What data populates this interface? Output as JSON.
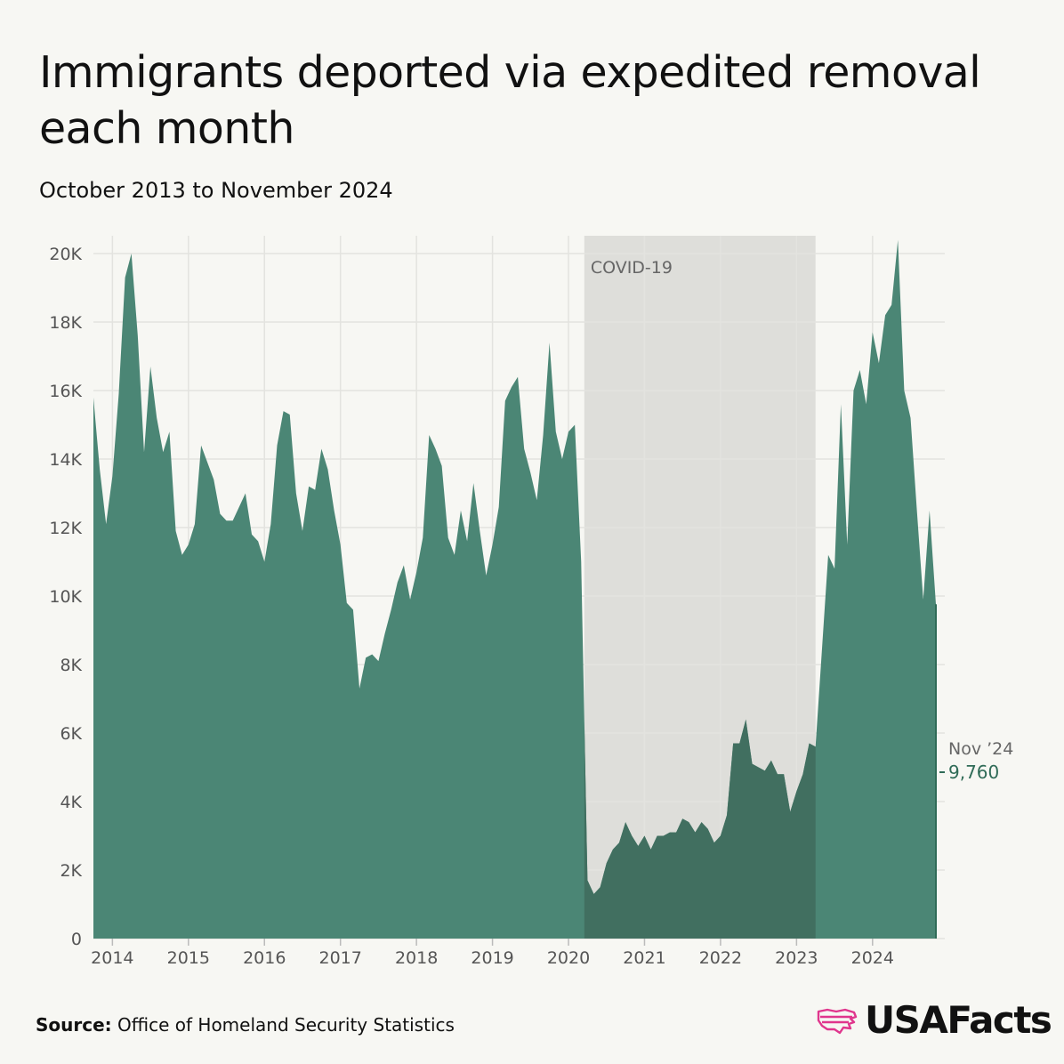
{
  "title": "Immigrants deported via expedited removal each month",
  "subtitle": "October 2013 to November 2024",
  "source_label": "Source:",
  "source_text": "Office of Homeland Security Statistics",
  "brand": "USAFacts",
  "colors": {
    "area": "#4b8675",
    "area_shaded": "#416f60",
    "band": "#dededa",
    "grid": "#e3e3df",
    "accent": "#2f6b57",
    "brand_pink": "#e0368d"
  },
  "chart_data": {
    "type": "area",
    "x_start": "2013-10",
    "x_interval": "month",
    "ylim": [
      0,
      20000
    ],
    "yticks": [
      {
        "value": 0,
        "label": "0"
      },
      {
        "value": 2000,
        "label": "2K"
      },
      {
        "value": 4000,
        "label": "4K"
      },
      {
        "value": 6000,
        "label": "6K"
      },
      {
        "value": 8000,
        "label": "8K"
      },
      {
        "value": 10000,
        "label": "10K"
      },
      {
        "value": 12000,
        "label": "12K"
      },
      {
        "value": 14000,
        "label": "14K"
      },
      {
        "value": 16000,
        "label": "16K"
      },
      {
        "value": 18000,
        "label": "18K"
      },
      {
        "value": 20000,
        "label": "20K"
      }
    ],
    "xticks": [
      "2014",
      "2015",
      "2016",
      "2017",
      "2018",
      "2019",
      "2020",
      "2021",
      "2022",
      "2023",
      "2024"
    ],
    "grid": true,
    "annotation": {
      "label": "COVID-19",
      "start": "2020-04",
      "end": "2023-04"
    },
    "last_point": {
      "label": "Nov ’24",
      "value_label": "9,760"
    },
    "values": [
      15800,
      13700,
      12100,
      13500,
      15900,
      19300,
      20000,
      17600,
      14200,
      16700,
      15200,
      14200,
      14800,
      11900,
      11200,
      11500,
      12100,
      14400,
      13900,
      13400,
      12400,
      12200,
      12200,
      12600,
      13000,
      11800,
      11600,
      11000,
      12100,
      14400,
      15400,
      15300,
      13000,
      11900,
      13200,
      13100,
      14300,
      13700,
      12500,
      11500,
      9800,
      9600,
      7300,
      8200,
      8300,
      8100,
      8900,
      9600,
      10400,
      10900,
      9900,
      10700,
      11700,
      14700,
      14300,
      13800,
      11700,
      11200,
      12500,
      11600,
      13300,
      11900,
      10600,
      11500,
      12600,
      15700,
      16100,
      16400,
      14300,
      13600,
      12800,
      14700,
      17400,
      14800,
      14000,
      14800,
      15000,
      11000,
      1700,
      1300,
      1500,
      2200,
      2600,
      2800,
      3400,
      3000,
      2700,
      3000,
      2600,
      3000,
      3000,
      3100,
      3100,
      3500,
      3400,
      3100,
      3400,
      3200,
      2800,
      3000,
      3600,
      5700,
      5700,
      6400,
      5100,
      5000,
      4900,
      5200,
      4800,
      4800,
      3700,
      4300,
      4800,
      5700,
      5600,
      8400,
      11200,
      10800,
      15600,
      11500,
      16000,
      16600,
      15600,
      17700,
      16800,
      18200,
      18500,
      20400,
      16000,
      15200,
      12500,
      9900,
      12500,
      9760
    ]
  }
}
